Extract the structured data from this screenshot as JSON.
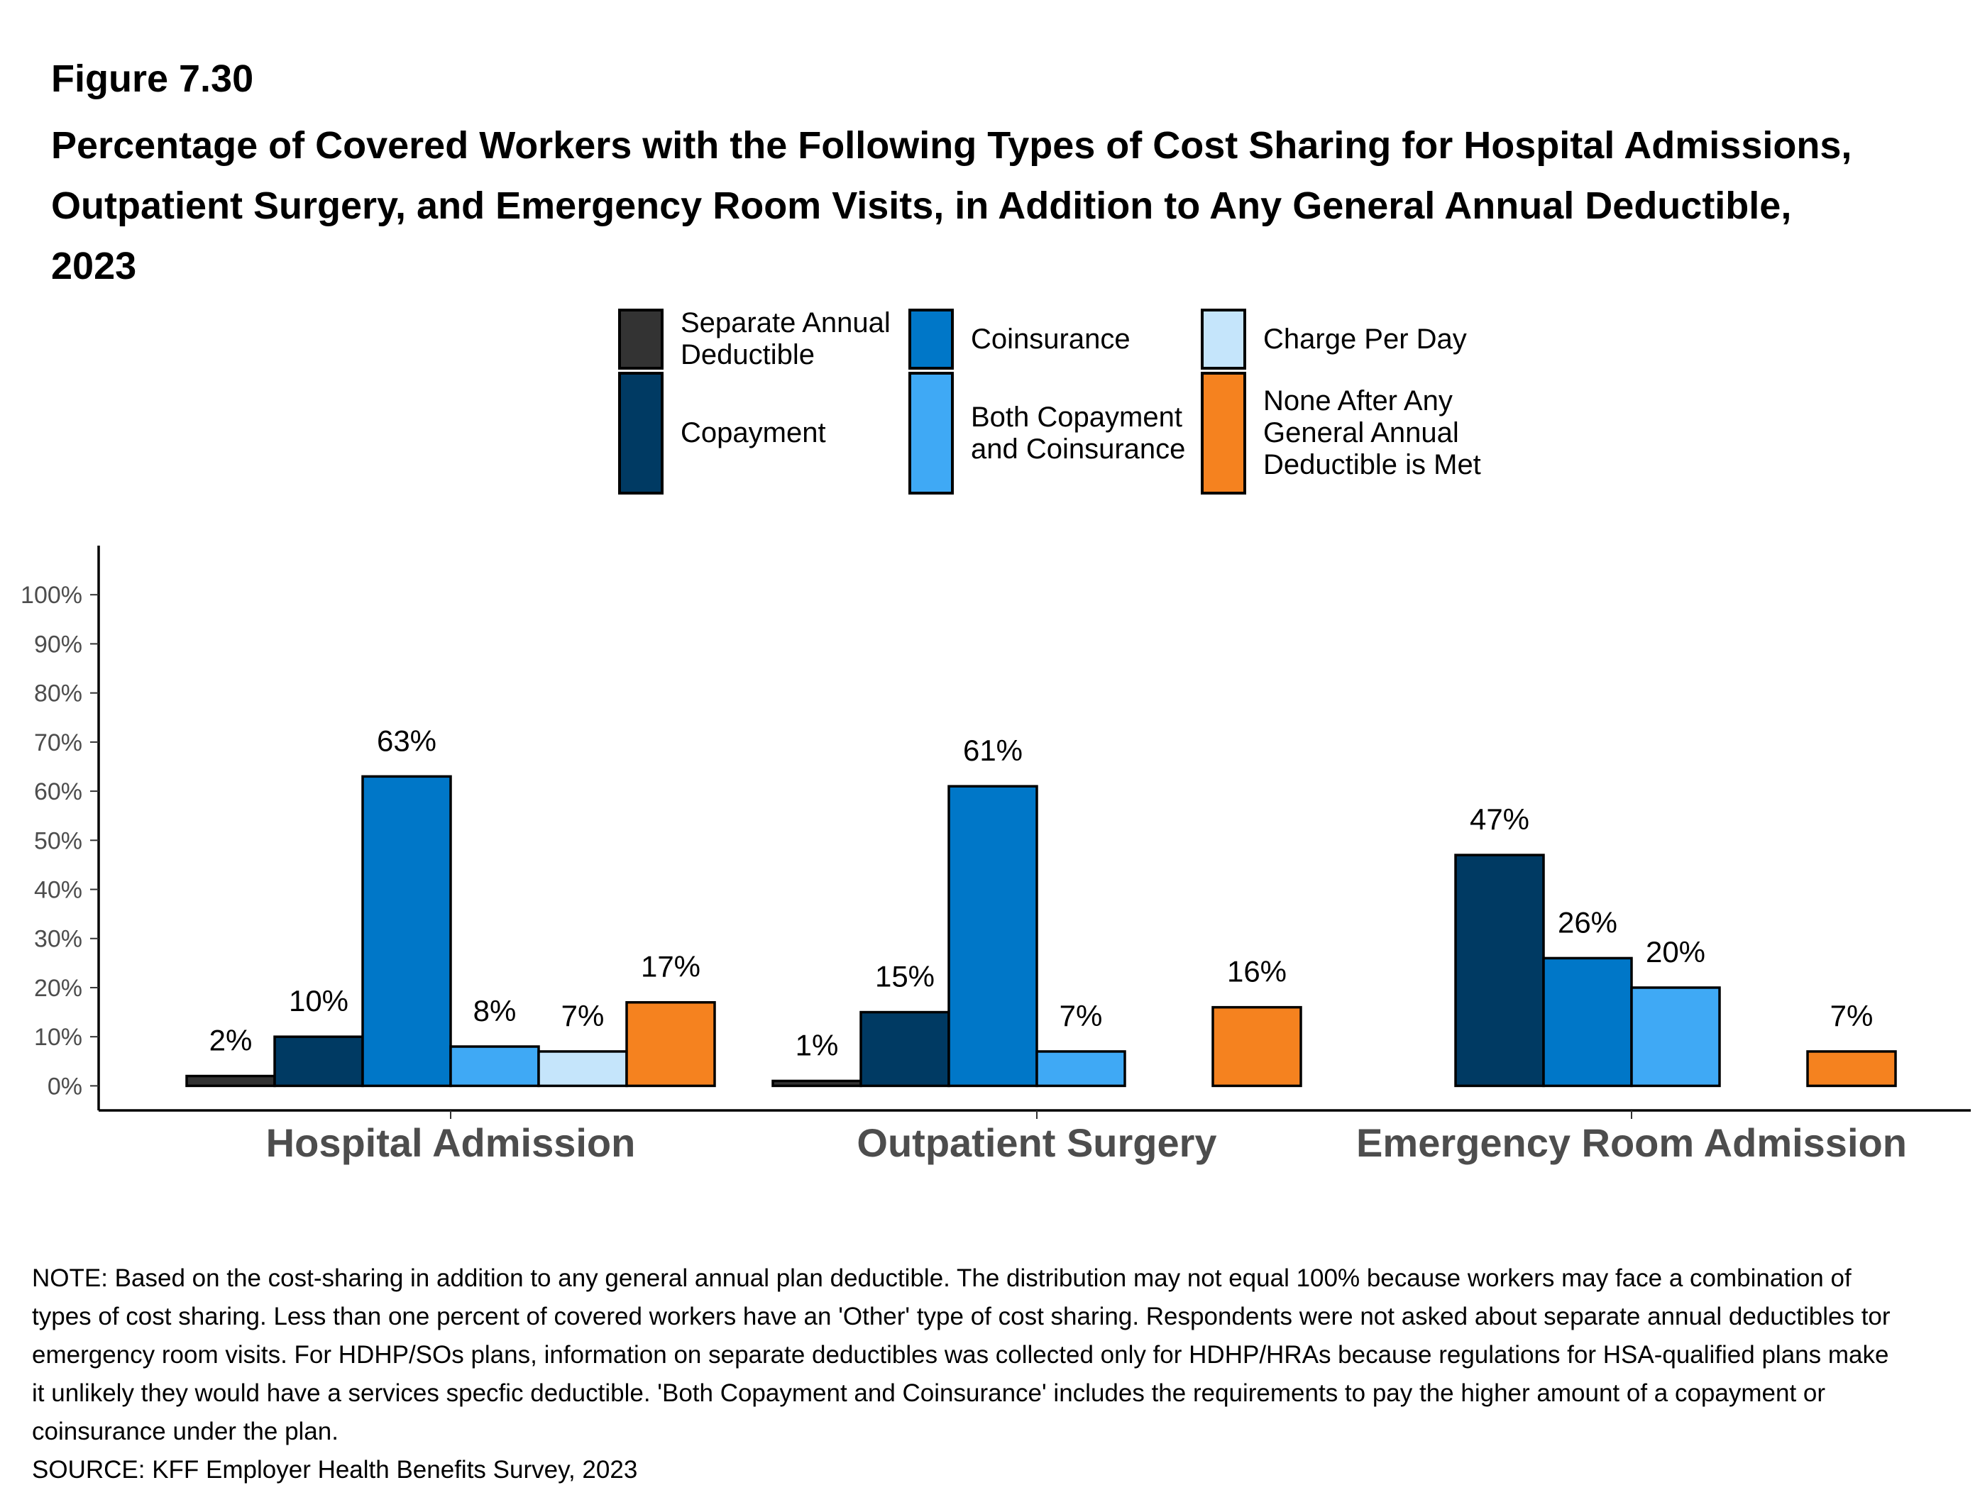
{
  "figure_label": "Figure 7.30",
  "chart_data": {
    "type": "bar",
    "title": "Percentage of Covered Workers with the Following Types of Cost Sharing for Hospital Admissions, Outpatient Surgery, and Emergency Room Visits, in Addition to Any General Annual Deductible, 2023",
    "categories": [
      "Hospital Admission",
      "Outpatient Surgery",
      "Emergency Room Admission"
    ],
    "series": [
      {
        "name": "Separate Annual Deductible",
        "color": "#333333",
        "values": [
          2,
          1,
          null
        ],
        "value_labels": [
          "2%",
          "1%",
          null
        ]
      },
      {
        "name": "Copayment",
        "color": "#003a63",
        "values": [
          10,
          15,
          47
        ],
        "value_labels": [
          "10%",
          "15%",
          "47%"
        ]
      },
      {
        "name": "Coinsurance",
        "color": "#0077c8",
        "values": [
          63,
          61,
          26
        ],
        "value_labels": [
          "63%",
          "61%",
          "26%"
        ]
      },
      {
        "name": "Both Copayment and Coinsurance",
        "color": "#3fa9f5",
        "values": [
          8,
          7,
          20
        ],
        "value_labels": [
          "8%",
          "7%",
          "20%"
        ]
      },
      {
        "name": "Charge Per Day",
        "color": "#c5e5fb",
        "values": [
          7,
          null,
          null
        ],
        "value_labels": [
          "7%",
          null,
          null
        ]
      },
      {
        "name": "None After Any General Annual Deductible is Met",
        "color": "#f5821f",
        "values": [
          17,
          16,
          7
        ],
        "value_labels": [
          "17%",
          "16%",
          "7%"
        ]
      }
    ],
    "ylim": [
      -5,
      110
    ],
    "yticks": [
      {
        "value": 0,
        "label": "0%"
      },
      {
        "value": 10,
        "label": "10%"
      },
      {
        "value": 20,
        "label": "20%"
      },
      {
        "value": 30,
        "label": "30%"
      },
      {
        "value": 40,
        "label": "40%"
      },
      {
        "value": 50,
        "label": "50%"
      },
      {
        "value": 60,
        "label": "60%"
      },
      {
        "value": 70,
        "label": "70%"
      },
      {
        "value": 80,
        "label": "80%"
      },
      {
        "value": 90,
        "label": "90%"
      },
      {
        "value": 100,
        "label": "100%"
      }
    ],
    "grid": false,
    "legend": "top"
  },
  "notes": [
    "NOTE: Based on the cost-sharing in addition to any general annual plan deductible. The distribution may not equal 100% because workers may face a combination of types of cost sharing. Less than one percent of covered workers have an 'Other' type of cost sharing. Respondents were not asked about separate annual deductibles tor emergency room visits. For HDHP/SOs plans, information on separate deductibles was collected only for HDHP/HRAs because regulations for HSA-qualified plans make it unlikely they would have a services specfic deductible. 'Both Copayment and Coinsurance' includes the requirements to pay the higher amount of a copayment or coinsurance under the plan.",
    "SOURCE: KFF Employer Health Benefits Survey, 2023"
  ]
}
